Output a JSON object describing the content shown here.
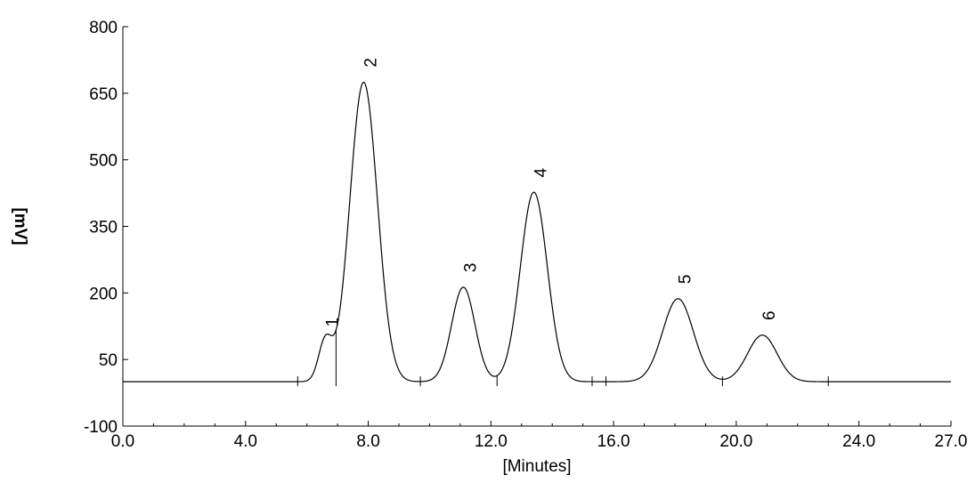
{
  "chart_data": {
    "type": "line",
    "title": "",
    "xlabel": "[Minutes]",
    "ylabel": "[mV]",
    "xlim": [
      0,
      27
    ],
    "ylim": [
      -100,
      800
    ],
    "x_ticks": [
      0,
      4,
      8,
      12,
      16,
      20,
      24,
      27
    ],
    "x_tick_labels": [
      "0.0",
      "4.0",
      "8.0",
      "12.0",
      "16.0",
      "20.0",
      "24.0",
      "27.0"
    ],
    "y_ticks": [
      -100,
      50,
      200,
      350,
      500,
      650,
      800
    ],
    "y_tick_labels": [
      "-100",
      "50",
      "200",
      "350",
      "500",
      "650",
      "800"
    ],
    "grid": false,
    "line_color": "#000000",
    "series": [
      {
        "peaks": [
          {
            "label": "1",
            "rt": 6.6,
            "height": 90
          },
          {
            "label": "2",
            "rt": 7.85,
            "height": 675
          },
          {
            "label": "3",
            "rt": 11.1,
            "height": 213
          },
          {
            "label": "4",
            "rt": 13.4,
            "height": 427
          },
          {
            "label": "5",
            "rt": 18.1,
            "height": 187
          },
          {
            "label": "6",
            "rt": 20.85,
            "height": 105
          }
        ]
      }
    ],
    "baseline": [
      {
        "x": 5.7,
        "y": 0
      },
      {
        "x": 6.95,
        "y": 0
      },
      {
        "x": 9.7,
        "y": 0
      },
      {
        "x": 12.2,
        "y": 0
      },
      {
        "x": 15.3,
        "y": 0
      },
      {
        "x": 15.75,
        "y": 0
      },
      {
        "x": 19.55,
        "y": 0
      },
      {
        "x": 23.0,
        "y": 0
      }
    ]
  }
}
